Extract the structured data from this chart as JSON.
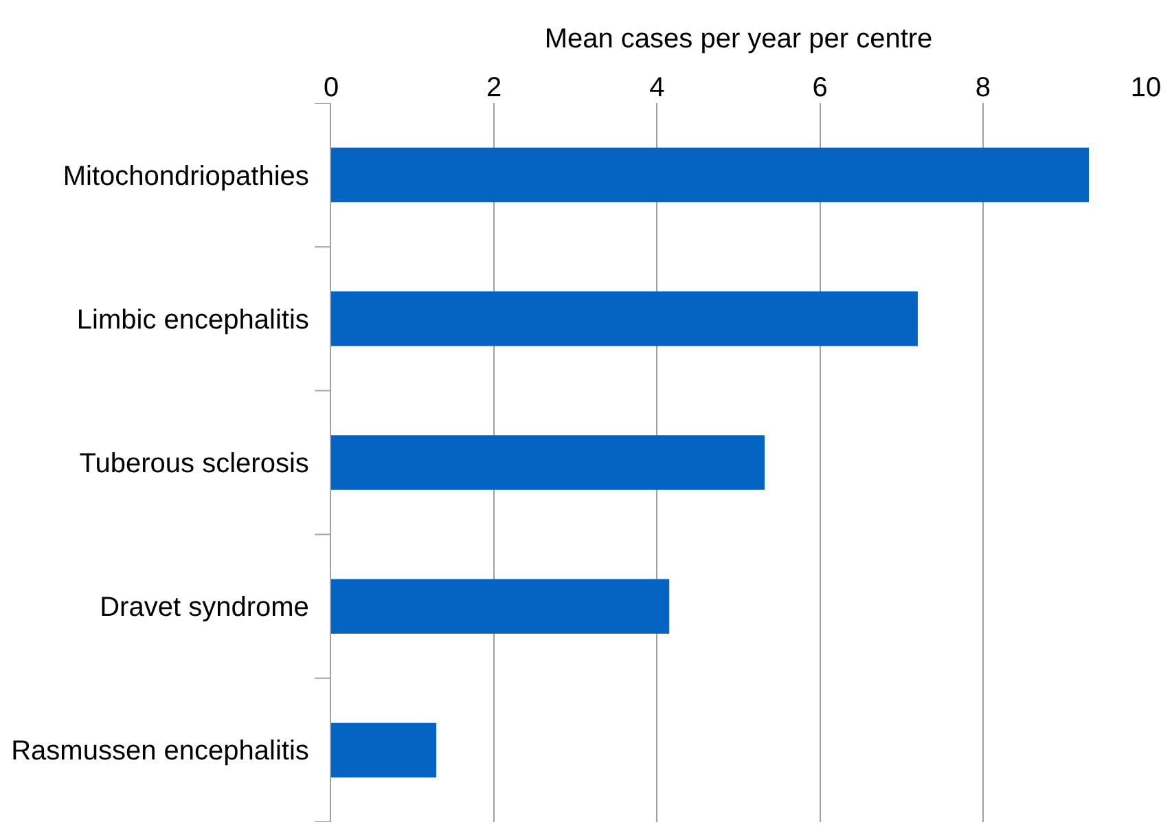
{
  "chart_data": {
    "type": "bar",
    "orientation": "horizontal",
    "xlabel": "Mean cases per year per centre",
    "categories": [
      "Mitochondriopathies",
      "Limbic encephalitis",
      "Tuberous sclerosis",
      "Dravet syndrome",
      "Rasmussen encephalitis"
    ],
    "values": [
      9.3,
      7.2,
      5.32,
      4.15,
      1.29
    ],
    "color": "#0563c1",
    "xlim": [
      0,
      10
    ],
    "xticks": [
      0,
      2,
      4,
      6,
      8,
      10
    ],
    "grid": "x"
  }
}
